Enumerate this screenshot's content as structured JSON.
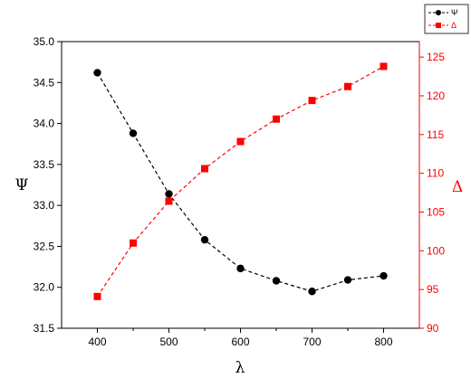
{
  "chart_data": {
    "type": "scatter",
    "x": [
      400,
      450,
      500,
      550,
      600,
      650,
      700,
      750,
      800
    ],
    "series": [
      {
        "name": "Ψ",
        "axis": "left",
        "color": "#000000",
        "marker": "circle",
        "line": "dashed",
        "values": [
          34.62,
          33.88,
          33.14,
          32.58,
          32.23,
          32.08,
          31.95,
          32.09,
          32.14
        ]
      },
      {
        "name": "Δ",
        "axis": "right",
        "color": "#ff0000",
        "marker": "square",
        "line": "dashed",
        "values": [
          94.1,
          101.0,
          106.4,
          110.6,
          114.1,
          117.0,
          119.4,
          121.2,
          123.8
        ]
      }
    ],
    "xlabel": "λ",
    "ylabel": "Ψ",
    "y2label": "Δ",
    "xlim": [
      350,
      850
    ],
    "ylim": [
      31.5,
      35.0
    ],
    "y2lim": [
      90,
      127
    ],
    "xticks": [
      400,
      500,
      600,
      700,
      800
    ],
    "yticks": [
      "31.5",
      "32.0",
      "32.5",
      "33.0",
      "33.5",
      "34.0",
      "34.5",
      "35.0"
    ],
    "y2ticks": [
      "90",
      "95",
      "100",
      "105",
      "110",
      "115",
      "120",
      "125"
    ],
    "grid": false,
    "legend_position": "top-right"
  }
}
